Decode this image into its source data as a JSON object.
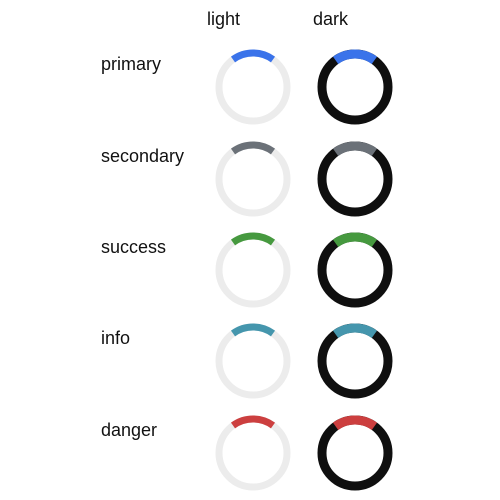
{
  "columns": {
    "light": "light",
    "dark": "dark"
  },
  "theme": {
    "light_track": "#ececec",
    "dark_track": "#0f0f0f"
  },
  "rows": [
    {
      "label": "primary",
      "color": "#3a73ea"
    },
    {
      "label": "secondary",
      "color": "#6b7178"
    },
    {
      "label": "success",
      "color": "#46993f"
    },
    {
      "label": "info",
      "color": "#4596ad"
    },
    {
      "label": "danger",
      "color": "#cc3f3f"
    }
  ],
  "spinner": {
    "arc_fraction": 0.2
  }
}
